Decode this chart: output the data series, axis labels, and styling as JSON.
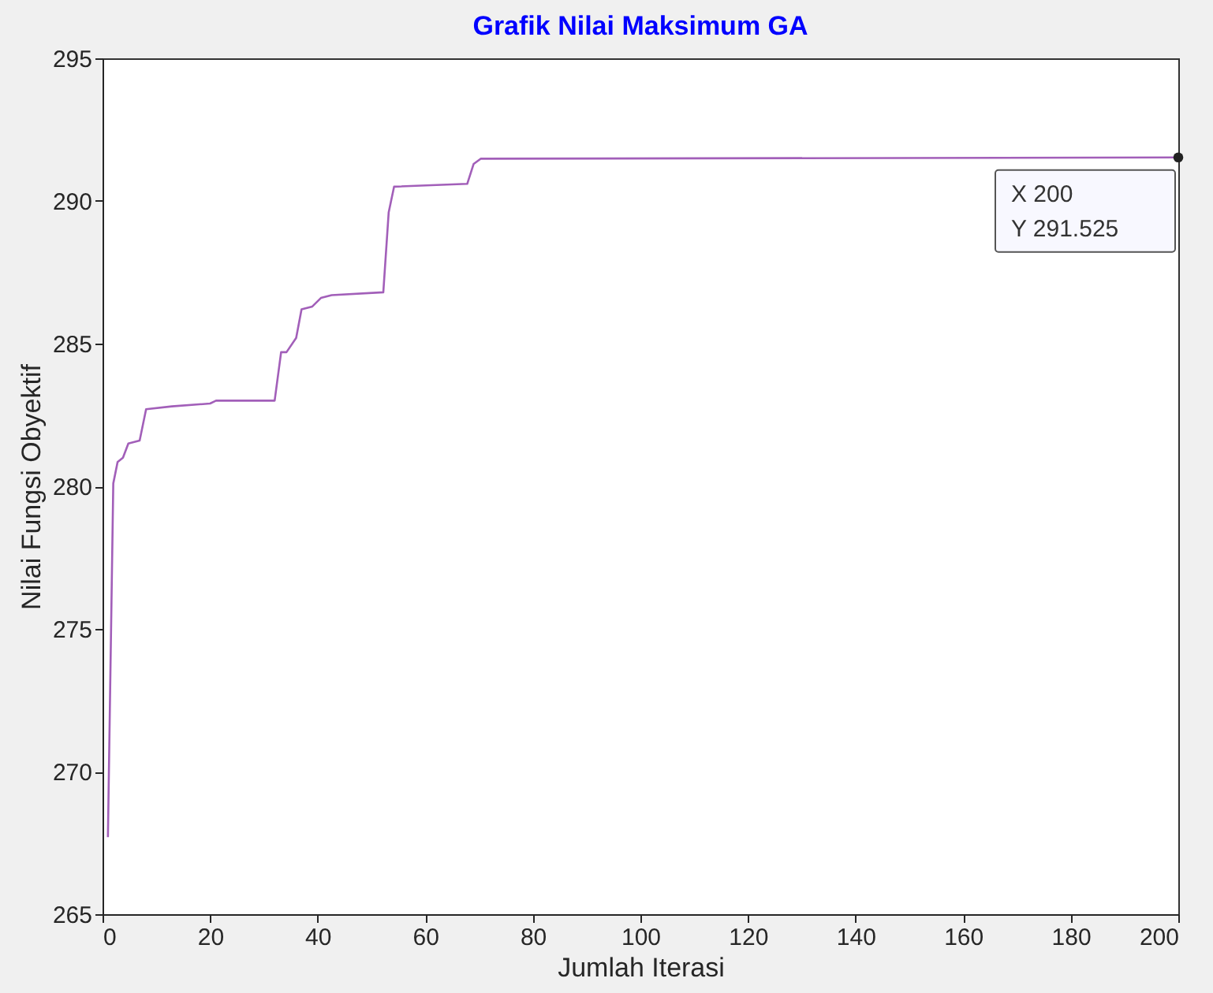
{
  "chart_data": {
    "type": "line",
    "title": "Grafik Nilai Maksimum GA",
    "xlabel": "Jumlah Iterasi",
    "ylabel": "Nilai Fungsi Obyektif",
    "series": [
      {
        "color": "#a25fb9",
        "x": [
          1,
          2,
          2.8,
          3.8,
          4.8,
          6.9,
          8.1,
          12.9,
          20,
          21.1,
          32,
          33.2,
          34.2,
          36,
          37,
          39,
          40.6,
          42.6,
          52.2,
          53.2,
          54.2,
          67.8,
          69,
          70.3,
          200
        ],
        "values": [
          267.7,
          280.1,
          280.85,
          281.0,
          281.5,
          281.6,
          282.7,
          282.8,
          282.9,
          283.0,
          283.0,
          284.7,
          284.7,
          285.2,
          286.2,
          286.3,
          286.6,
          286.7,
          286.8,
          289.6,
          290.5,
          290.6,
          291.3,
          291.48,
          291.525
        ]
      }
    ],
    "xlim": [
      0,
      200
    ],
    "xticks": [
      0,
      20,
      40,
      60,
      80,
      100,
      120,
      140,
      160,
      180,
      200
    ],
    "ylim": [
      265,
      295
    ],
    "yticks": [
      265,
      270,
      275,
      280,
      285,
      290,
      295
    ],
    "grid": false,
    "marker": "none",
    "line_style": "solid",
    "annotations": [
      {
        "text": "X 200\nY 291.525",
        "x": 200,
        "y": 291.525
      }
    ]
  }
}
